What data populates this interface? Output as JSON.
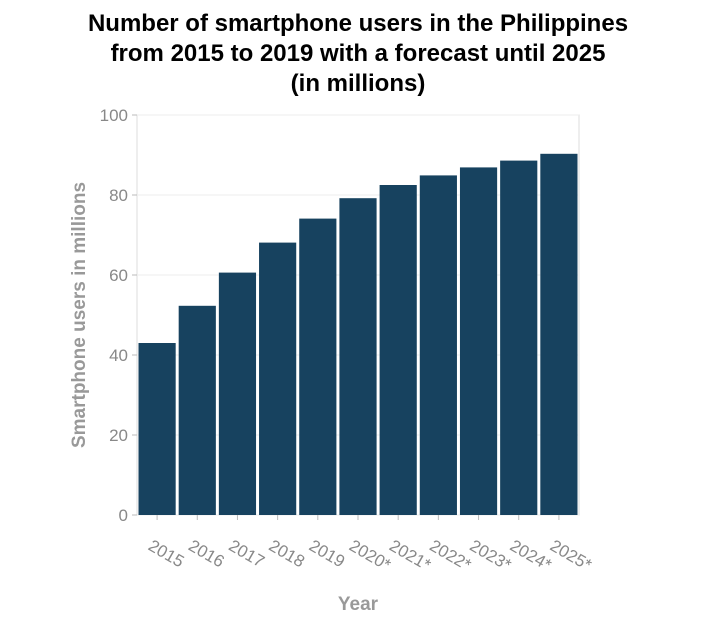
{
  "chart_data": {
    "type": "bar",
    "title_lines": [
      "Number of smartphone users in the Philippines",
      "from 2015 to 2019 with a forecast until 2025",
      "(in millions)"
    ],
    "xlabel": "Year",
    "ylabel": "Smartphone users in millions",
    "categories": [
      "2015",
      "2016",
      "2017",
      "2018",
      "2019",
      "2020*",
      "2021*",
      "2022*",
      "2023*",
      "2024*",
      "2025*"
    ],
    "values": [
      43.0,
      52.3,
      60.6,
      68.1,
      74.1,
      79.2,
      82.5,
      84.9,
      86.9,
      88.6,
      90.3
    ],
    "yticks": [
      0,
      20,
      40,
      60,
      80,
      100
    ],
    "ylim": [
      0,
      100
    ],
    "grid": true,
    "bar_color": "#17425f"
  }
}
